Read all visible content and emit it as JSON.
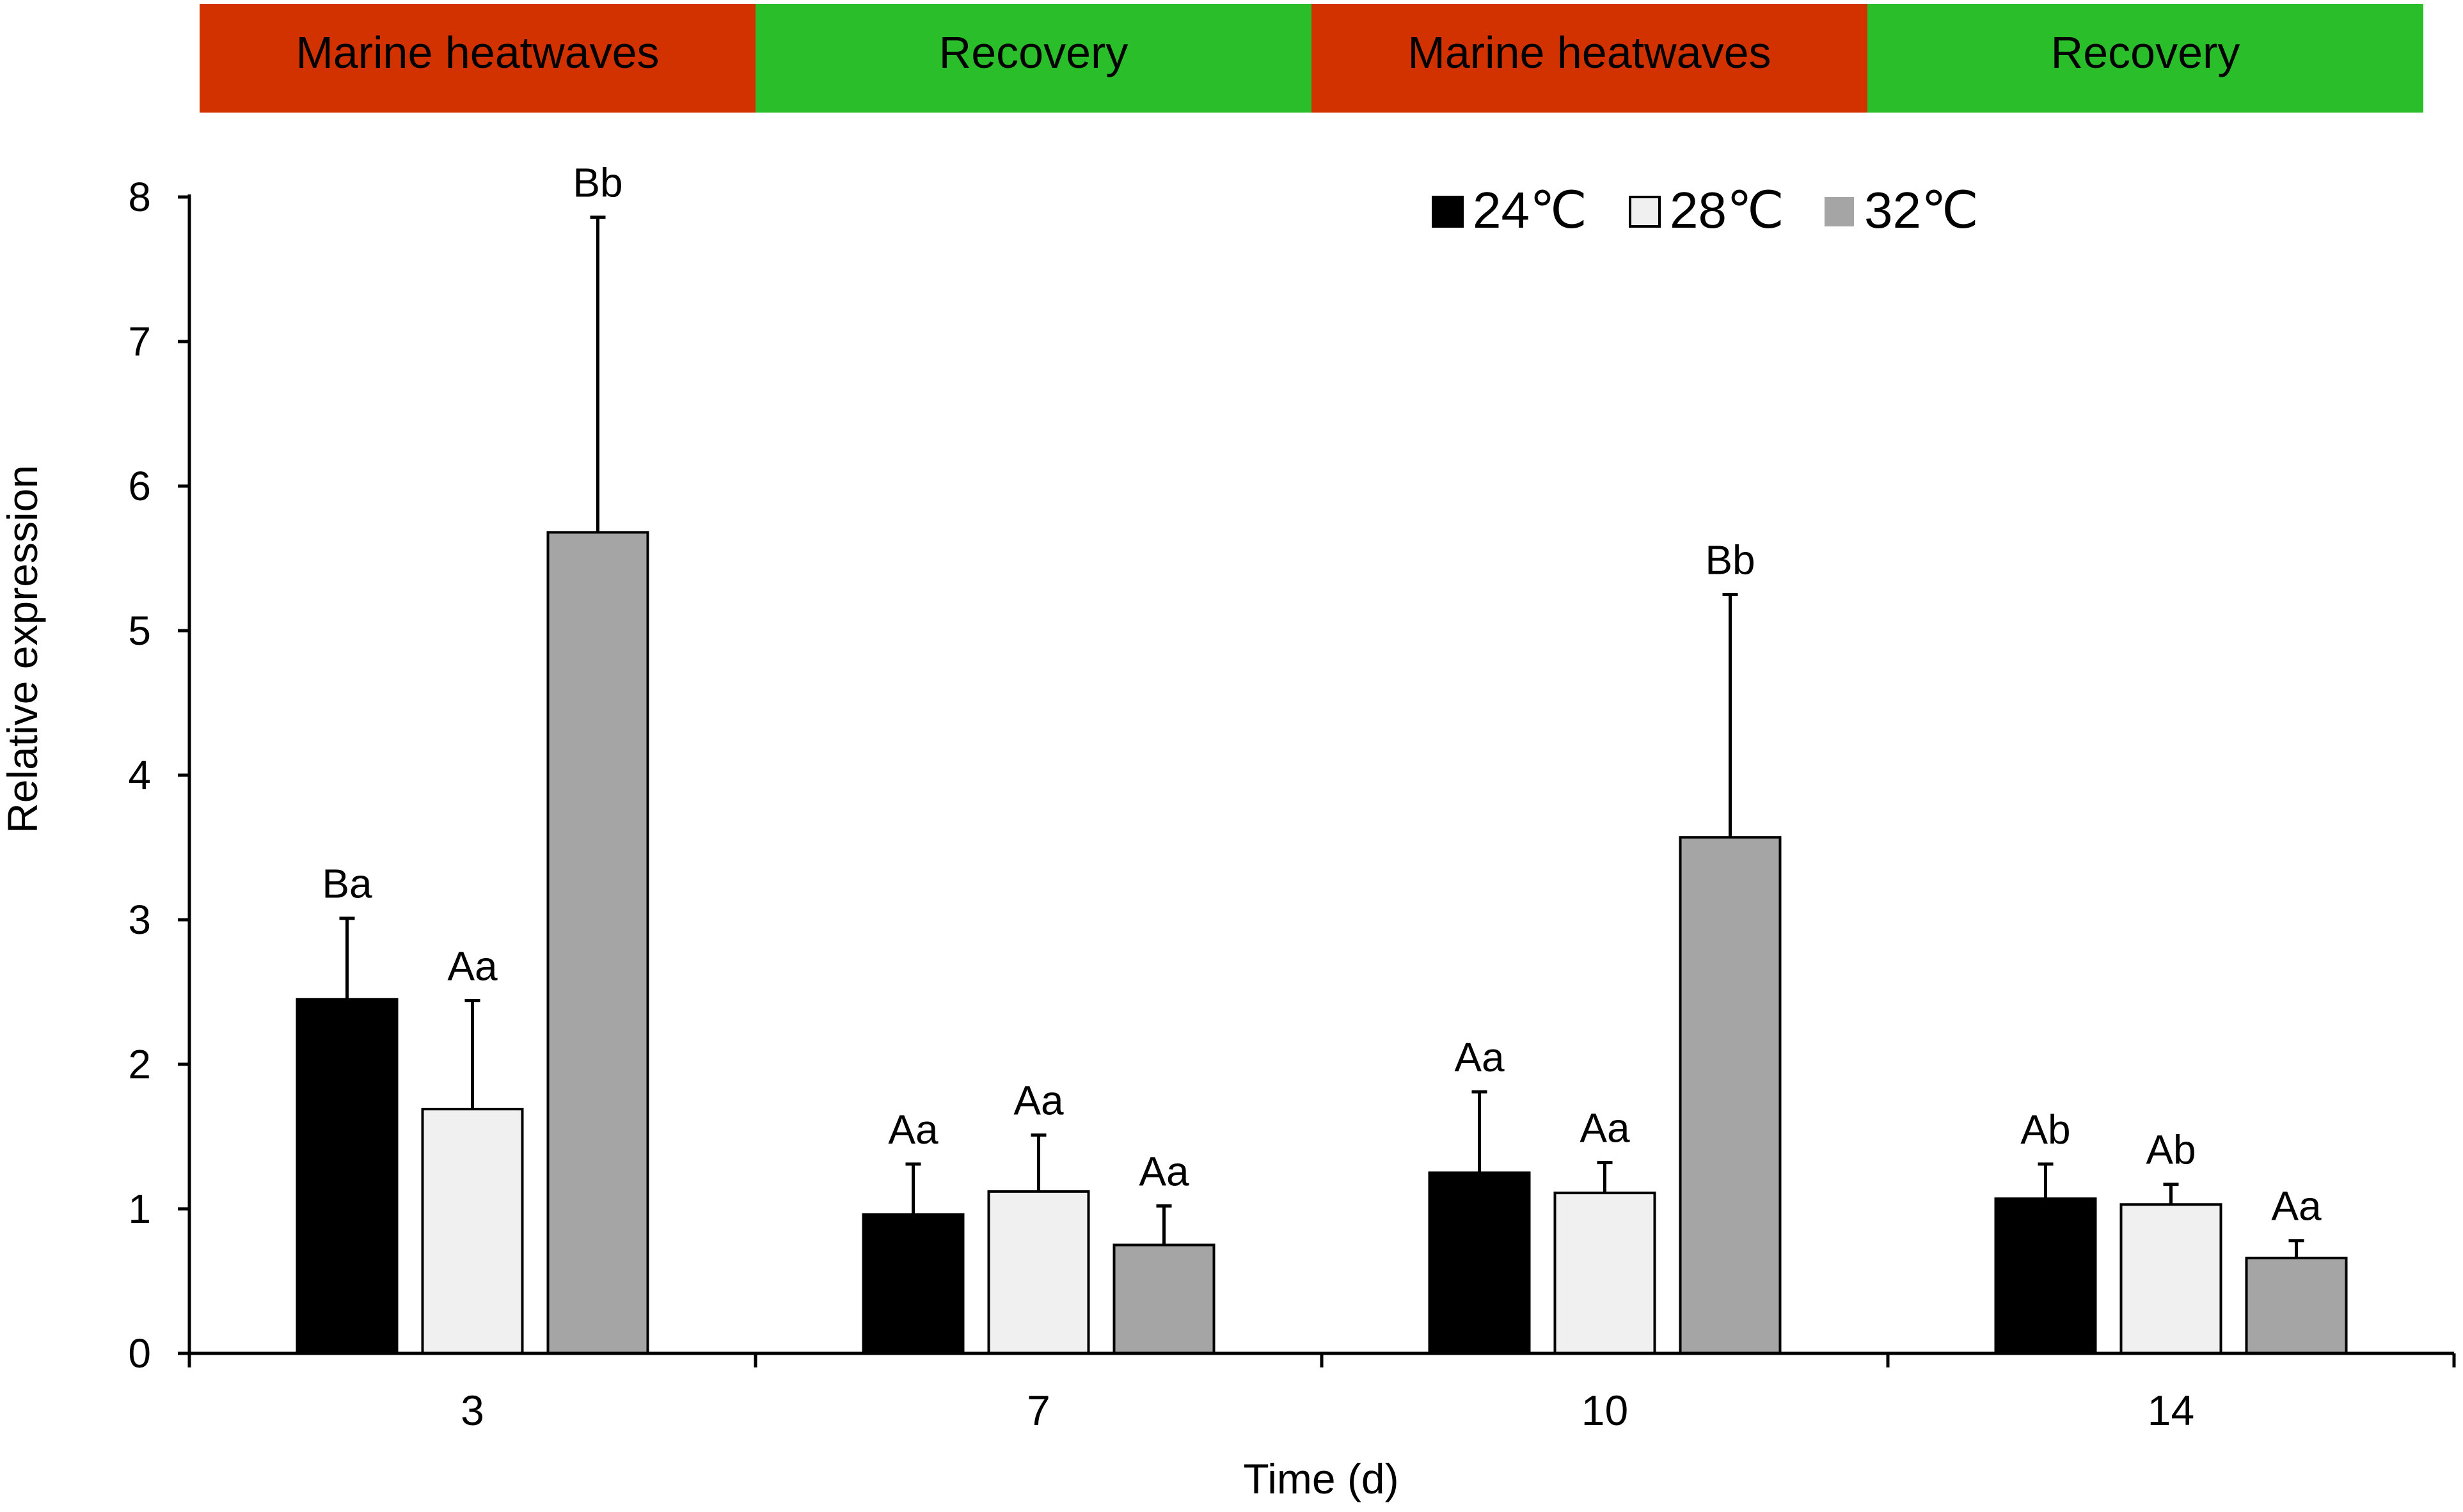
{
  "chart_data": {
    "type": "bar",
    "title": "",
    "xlabel": "Time (d)",
    "ylabel": "Relative expression",
    "ylim": [
      0,
      8
    ],
    "yticks": [
      0,
      1,
      2,
      3,
      4,
      5,
      6,
      7,
      8
    ],
    "grid": false,
    "legend_position": "top-right",
    "categories": [
      "3",
      "7",
      "10",
      "14"
    ],
    "series": [
      {
        "name": "24℃",
        "color": "#000000",
        "values": [
          2.45,
          0.96,
          1.25,
          1.07
        ],
        "errors": [
          0.56,
          0.35,
          0.56,
          0.24
        ],
        "labels": [
          "Ba",
          "Aa",
          "Aa",
          "Ab"
        ]
      },
      {
        "name": "28℃",
        "color": "#f0f0f0",
        "values": [
          1.69,
          1.12,
          1.11,
          1.03
        ],
        "errors": [
          0.75,
          0.39,
          0.21,
          0.14
        ],
        "labels": [
          "Aa",
          "Aa",
          "Aa",
          "Ab"
        ]
      },
      {
        "name": "32℃",
        "color": "#a5a5a5",
        "values": [
          5.68,
          0.75,
          3.57,
          0.66
        ],
        "errors": [
          2.18,
          0.27,
          1.68,
          0.12
        ],
        "labels": [
          "Bb",
          "Aa",
          "Bb",
          "Aa"
        ]
      }
    ],
    "phases": [
      {
        "label": "Marine heatwaves",
        "color": "#d23200"
      },
      {
        "label": "Recovery",
        "color": "#2abf2a"
      },
      {
        "label": "Marine heatwaves",
        "color": "#d23200"
      },
      {
        "label": "Recovery",
        "color": "#2abf2a"
      }
    ]
  }
}
